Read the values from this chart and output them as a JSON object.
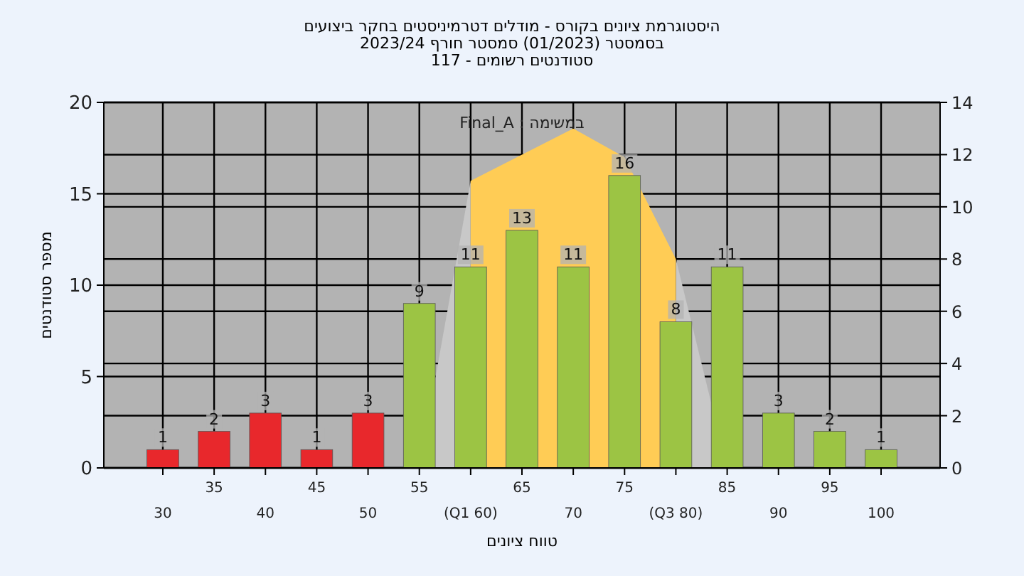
{
  "chart_data": {
    "type": "bar",
    "title": "היסטוגרמת ציונים בקורס - מודלים דטרמיניסטים בחקר ביצועים\nבסמסטר  (01/2023)  סמסטר חורף 2023/24",
    "subtitle": "סטודנטים רשומים - 117",
    "xlabel": "טווח ציונים",
    "ylabel": "מספר סטודנטים",
    "annotations": [
      "במשימה : Final_A"
    ],
    "categories": [
      "30",
      "35",
      "40",
      "45",
      "50",
      "55",
      "(Q1 60)",
      "65",
      "70",
      "75",
      "(Q3 80)",
      "85",
      "90",
      "95",
      "100"
    ],
    "series": [
      {
        "type": "area",
        "axis": "y2",
        "color": "#c8c8c8",
        "values": [
          null,
          null,
          null,
          null,
          null,
          0,
          11,
          null,
          null,
          null,
          8,
          0,
          null,
          null,
          null
        ]
      },
      {
        "type": "area",
        "axis": "y2",
        "color": "#ffcc55",
        "values": [
          null,
          null,
          null,
          null,
          null,
          null,
          11,
          12,
          13,
          11.9,
          8,
          null,
          null,
          null,
          null
        ]
      },
      {
        "colors": [
          "#e8282c",
          "#e8282c",
          "#e8282c",
          "#e8282c",
          "#e8282c",
          "#9cc444",
          "#9cc444",
          "#9cc444",
          "#9cc444",
          "#9cc444",
          "#9cc444",
          "#9cc444",
          "#9cc444",
          "#9cc444",
          "#9cc444"
        ],
        "values": [
          1,
          2,
          3,
          1,
          3,
          9,
          11,
          13,
          11,
          16,
          8,
          11,
          3,
          2,
          1
        ],
        "value_labels": [
          "1",
          "2",
          "3",
          "1",
          "3",
          "9",
          "11",
          "13",
          "11",
          "16",
          "8",
          "11",
          "3",
          "2",
          "1"
        ]
      }
    ],
    "ylim": [
      0,
      20
    ],
    "yticks": [
      0,
      5,
      10,
      15,
      20
    ],
    "y2lim": [
      0,
      14
    ],
    "y2ticks": [
      0,
      2,
      4,
      6,
      8,
      10,
      12,
      14
    ],
    "grid": true
  }
}
